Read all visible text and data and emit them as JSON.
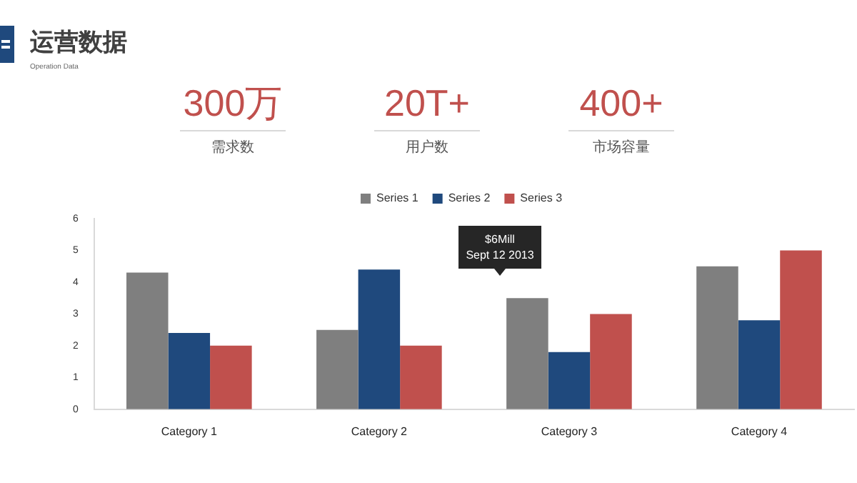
{
  "chart_data": {
    "type": "bar",
    "title": "运营数据",
    "subtitle": "Operation Data",
    "categories": [
      "Category 1",
      "Category 2",
      "Category 3",
      "Category 4"
    ],
    "series": [
      {
        "name": "Series 1",
        "color": "#7f7f7f",
        "values": [
          4.3,
          2.5,
          3.5,
          4.5
        ]
      },
      {
        "name": "Series 2",
        "color": "#1f497d",
        "values": [
          2.4,
          4.4,
          1.8,
          2.8
        ]
      },
      {
        "name": "Series 3",
        "color": "#c0504d",
        "values": [
          2,
          2,
          3,
          5
        ]
      }
    ],
    "ylim": [
      0,
      6
    ],
    "yticks": [
      0,
      1,
      2,
      3,
      4,
      5,
      6
    ],
    "grid": false,
    "legend": "top",
    "annotations": [
      "300万",
      "需求数",
      "20T+",
      "用户数",
      "400+",
      "市场容量",
      "$6Mill\nSept 12 2013"
    ]
  }
}
